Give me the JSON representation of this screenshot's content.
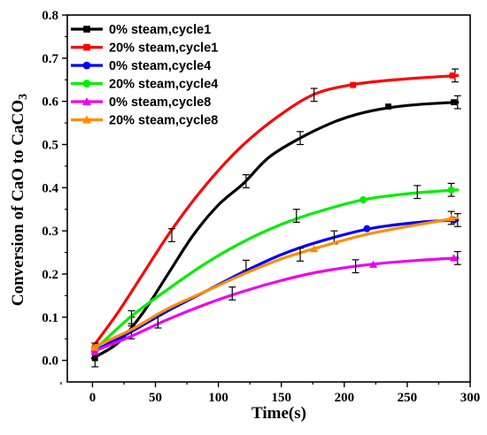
{
  "chart_data": {
    "type": "line",
    "title": "",
    "xlabel": "Time(s)",
    "ylabel_prefix": "Conversion of CaO to CaCO",
    "ylabel_subscript": "3",
    "xlim": [
      -20,
      300
    ],
    "ylim": [
      -0.05,
      0.8
    ],
    "x_ticks": [
      0,
      50,
      100,
      150,
      200,
      250,
      300
    ],
    "y_ticks": [
      0.0,
      0.1,
      0.2,
      0.3,
      0.4,
      0.5,
      0.6,
      0.7,
      0.8
    ],
    "x_tick_labels": [
      "0",
      "50",
      "100",
      "150",
      "200",
      "250",
      "300"
    ],
    "y_tick_labels": [
      "0.0",
      "0.1",
      "0.2",
      "0.3",
      "0.4",
      "0.5",
      "0.6",
      "0.7",
      "0.8"
    ],
    "grid": false,
    "legend_position": "top-left",
    "series": [
      {
        "name": "0% steam,cycle1",
        "color": "#000000",
        "marker": "square",
        "curve": [
          [
            0,
            0.005
          ],
          [
            20,
            0.04
          ],
          [
            40,
            0.11
          ],
          [
            60,
            0.2
          ],
          [
            80,
            0.29
          ],
          [
            100,
            0.36
          ],
          [
            120,
            0.41
          ],
          [
            140,
            0.47
          ],
          [
            165,
            0.515
          ],
          [
            190,
            0.55
          ],
          [
            210,
            0.57
          ],
          [
            235,
            0.585
          ],
          [
            260,
            0.593
          ],
          [
            290,
            0.598
          ]
        ],
        "errors": [
          [
            2,
            0.005,
            0.02
          ],
          [
            31,
            0.085,
            0.015
          ],
          [
            122,
            0.415,
            0.015
          ],
          [
            165,
            0.515,
            0.015
          ],
          [
            290,
            0.598,
            0.015
          ]
        ],
        "markers": [
          [
            2,
            0.005
          ],
          [
            235,
            0.588
          ],
          [
            287,
            0.598
          ]
        ]
      },
      {
        "name": "20% steam,cycle1",
        "color": "#ff0000",
        "marker": "square",
        "curve": [
          [
            0,
            0.03
          ],
          [
            20,
            0.11
          ],
          [
            40,
            0.2
          ],
          [
            60,
            0.29
          ],
          [
            80,
            0.37
          ],
          [
            100,
            0.44
          ],
          [
            120,
            0.5
          ],
          [
            145,
            0.56
          ],
          [
            175,
            0.615
          ],
          [
            205,
            0.638
          ],
          [
            240,
            0.65
          ],
          [
            290,
            0.66
          ]
        ],
        "errors": [
          [
            2,
            0.03,
            0.01
          ],
          [
            63,
            0.29,
            0.015
          ],
          [
            176,
            0.615,
            0.015
          ],
          [
            288,
            0.66,
            0.015
          ]
        ],
        "markers": [
          [
            2,
            0.03
          ],
          [
            207,
            0.638
          ],
          [
            286,
            0.66
          ]
        ]
      },
      {
        "name": "0% steam,cycle4",
        "color": "#0000ff",
        "marker": "circle",
        "curve": [
          [
            0,
            0.02
          ],
          [
            30,
            0.065
          ],
          [
            60,
            0.115
          ],
          [
            90,
            0.16
          ],
          [
            120,
            0.205
          ],
          [
            150,
            0.245
          ],
          [
            180,
            0.275
          ],
          [
            220,
            0.305
          ],
          [
            260,
            0.32
          ],
          [
            290,
            0.325
          ]
        ],
        "errors": [
          [
            31,
            0.065,
            0.015
          ],
          [
            122,
            0.22,
            0.012
          ],
          [
            192,
            0.285,
            0.015
          ],
          [
            290,
            0.325,
            0.015
          ]
        ],
        "markers": [
          [
            2,
            0.02
          ],
          [
            218,
            0.305
          ],
          [
            287,
            0.325
          ]
        ]
      },
      {
        "name": "20% steam,cycle4",
        "color": "#00ee00",
        "marker": "circle",
        "curve": [
          [
            0,
            0.02
          ],
          [
            30,
            0.1
          ],
          [
            60,
            0.165
          ],
          [
            90,
            0.225
          ],
          [
            120,
            0.275
          ],
          [
            150,
            0.315
          ],
          [
            180,
            0.345
          ],
          [
            215,
            0.372
          ],
          [
            250,
            0.386
          ],
          [
            290,
            0.395
          ]
        ],
        "errors": [
          [
            31,
            0.1,
            0.015
          ],
          [
            162,
            0.335,
            0.015
          ],
          [
            258,
            0.39,
            0.015
          ],
          [
            285,
            0.395,
            0.015
          ]
        ],
        "markers": [
          [
            2,
            0.02
          ],
          [
            215,
            0.372
          ],
          [
            285,
            0.395
          ]
        ]
      },
      {
        "name": "0% steam,cycle8",
        "color": "#ee00ee",
        "marker": "triangle",
        "curve": [
          [
            0,
            0.02
          ],
          [
            30,
            0.055
          ],
          [
            60,
            0.095
          ],
          [
            90,
            0.13
          ],
          [
            120,
            0.16
          ],
          [
            150,
            0.185
          ],
          [
            180,
            0.205
          ],
          [
            220,
            0.222
          ],
          [
            260,
            0.232
          ],
          [
            290,
            0.237
          ]
        ],
        "errors": [
          [
            52,
            0.09,
            0.015
          ],
          [
            111,
            0.155,
            0.015
          ],
          [
            209,
            0.218,
            0.015
          ],
          [
            290,
            0.237,
            0.015
          ]
        ],
        "markers": [
          [
            2,
            0.02
          ],
          [
            223,
            0.222
          ],
          [
            287,
            0.237
          ]
        ]
      },
      {
        "name": "20% steam,cycle8",
        "color": "#ff8c00",
        "marker": "triangle",
        "curve": [
          [
            0,
            0.03
          ],
          [
            30,
            0.07
          ],
          [
            60,
            0.12
          ],
          [
            90,
            0.16
          ],
          [
            120,
            0.2
          ],
          [
            150,
            0.235
          ],
          [
            180,
            0.262
          ],
          [
            215,
            0.29
          ],
          [
            250,
            0.31
          ],
          [
            290,
            0.33
          ]
        ],
        "errors": [
          [
            165,
            0.245,
            0.015
          ],
          [
            285,
            0.33,
            0.015
          ]
        ],
        "markers": [
          [
            2,
            0.03
          ],
          [
            176,
            0.258
          ],
          [
            285,
            0.33
          ]
        ]
      }
    ]
  }
}
